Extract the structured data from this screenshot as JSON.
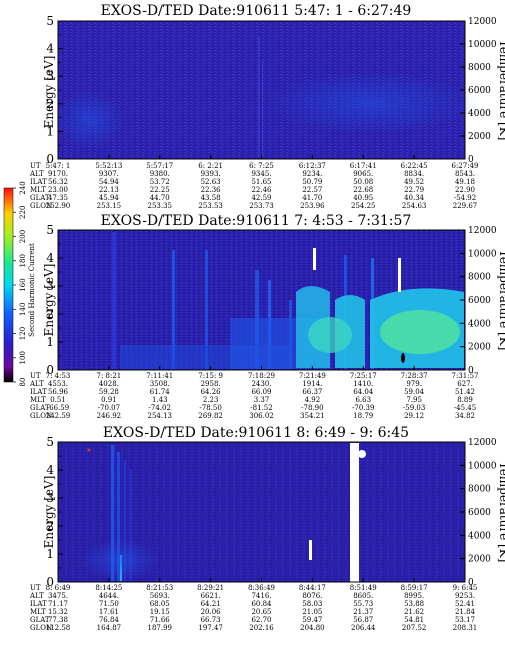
{
  "chart_data": [
    {
      "type": "heatmap",
      "title": "EXOS-D/TED   Date:910611  5:47: 1 - 6:27:49",
      "ylabel": "Energy [eV]",
      "ylabel_right": "Temperature [K]",
      "ylim": [
        0,
        5
      ],
      "ylim_right": [
        0,
        12000
      ],
      "y_ticks": [
        "0",
        "1",
        "2",
        "3",
        "4",
        "5"
      ],
      "y_ticks_right": [
        "0",
        "2000",
        "4000",
        "6000",
        "8000",
        "10000",
        "12000"
      ],
      "row_labels": [
        "UT",
        "ALT",
        "ILAT",
        "MLT",
        "GLAT",
        "GLON"
      ],
      "columns": [
        [
          "5:47: 1",
          "9170.",
          "56.32",
          "23.00",
          "47.35",
          "252.90"
        ],
        [
          "5:52:13",
          "9307.",
          "54.94",
          "22.13",
          "45.94",
          "253.15"
        ],
        [
          "5:57:17",
          "9380.",
          "53.72",
          "22.25",
          "44.70",
          "253.35"
        ],
        [
          "6: 2:21",
          "9393.",
          "52.63",
          "22.36",
          "43.58",
          "253.53"
        ],
        [
          "6: 7:25",
          "9345.",
          "51.65",
          "22.46",
          "42.59",
          "253.73"
        ],
        [
          "6:12:37",
          "9234.",
          "50.79",
          "22.57",
          "41.70",
          "253.96"
        ],
        [
          "6:17:41",
          "9065.",
          "50.08",
          "22.68",
          "40.95",
          "254.25"
        ],
        [
          "6:22:45",
          "8834.",
          "49.52",
          "22.79",
          "40.34",
          "254.63"
        ],
        [
          "6:27:49",
          "8543.",
          "49.18",
          "22.90",
          "-54.92",
          "229.67"
        ]
      ]
    },
    {
      "type": "heatmap",
      "title": "EXOS-D/TED   Date:910611  7: 4:53 - 7:31:57",
      "ylabel": "Energy [eV]",
      "ylabel_right": "Temperature [K]",
      "ylim": [
        0,
        5
      ],
      "ylim_right": [
        0,
        12000
      ],
      "y_ticks": [
        "0",
        "1",
        "2",
        "3",
        "4",
        "5"
      ],
      "y_ticks_right": [
        "0",
        "2000",
        "4000",
        "6000",
        "8000",
        "10000",
        "12000"
      ],
      "row_labels": [
        "UT",
        "ALT",
        "ILAT",
        "MLT",
        "GLAT",
        "GLON"
      ],
      "columns": [
        [
          "7: 4:53",
          "4553.",
          "56.96",
          "0.51",
          "-66.59",
          "242.59"
        ],
        [
          "7: 8:21",
          "4028.",
          "59.28",
          "0.91",
          "-70.07",
          "246.92"
        ],
        [
          "7:11:41",
          "3508.",
          "61.74",
          "1.43",
          "-74.02",
          "254.13"
        ],
        [
          "7:15: 9",
          "2958.",
          "64.26",
          "2.23",
          "-78.50",
          "269.82"
        ],
        [
          "7:18:29",
          "2430.",
          "66.09",
          "3.37",
          "-81.52",
          "306.02"
        ],
        [
          "7:21:49",
          "1914.",
          "66.37",
          "4.92",
          "-78.90",
          "354.21"
        ],
        [
          "7:25:17",
          "1410.",
          "64.04",
          "6.63",
          "-70.39",
          "18.79"
        ],
        [
          "7:28:37",
          "979.",
          "59.04",
          "7.95",
          "-59.03",
          "29.12"
        ],
        [
          "7:31:57",
          "627.",
          "51.42",
          "8.89",
          "-45.45",
          "34.82"
        ]
      ],
      "colorbar": {
        "label": "Second Harmonic Current",
        "ticks": [
          "80",
          "100",
          "120",
          "140",
          "160",
          "180",
          "200",
          "220",
          "240"
        ]
      }
    },
    {
      "type": "heatmap",
      "title": "EXOS-D/TED   Date:910611  8: 6:49 - 9: 6:45",
      "ylabel": "Energy [eV]",
      "ylabel_right": "Temperature [K]",
      "ylim": [
        0,
        5
      ],
      "ylim_right": [
        0,
        12000
      ],
      "y_ticks": [
        "0",
        "1",
        "2",
        "3",
        "4",
        "5"
      ],
      "y_ticks_right": [
        "0",
        "2000",
        "4000",
        "6000",
        "8000",
        "10000",
        "12000"
      ],
      "row_labels": [
        "UT",
        "ALT",
        "ILAT",
        "MLT",
        "GLAT",
        "GLON"
      ],
      "columns": [
        [
          "8: 6:49",
          "3475.",
          "71.17",
          "15.32",
          "77.38",
          "112.58"
        ],
        [
          "8:14:25",
          "4644.",
          "71.50",
          "17.61",
          "76.84",
          "164.87"
        ],
        [
          "8:21:53",
          "5693.",
          "68.05",
          "19.15",
          "71.66",
          "187.99"
        ],
        [
          "8:29:21",
          "6621.",
          "64.21",
          "20.06",
          "66.73",
          "197.47"
        ],
        [
          "8:36:49",
          "7416.",
          "60.84",
          "20.65",
          "62.70",
          "202.16"
        ],
        [
          "8:44:17",
          "8076.",
          "58.03",
          "21.05",
          "59.47",
          "204.80"
        ],
        [
          "8:51:49",
          "8605.",
          "55.73",
          "21.37",
          "56.87",
          "206.44"
        ],
        [
          "8:59:17",
          "8995.",
          "53.88",
          "21.62",
          "54.81",
          "207.52"
        ],
        [
          "9: 6:45",
          "9253.",
          "52.41",
          "21.84",
          "53.17",
          "208.31"
        ]
      ]
    }
  ],
  "colors": {
    "background_field": "#2a20a8",
    "enhancement_blue": "#1e58ea",
    "enhancement_cyan": "#22c8e8",
    "enhancement_green": "#4ee0a0",
    "data_gap": "#ffffff"
  }
}
